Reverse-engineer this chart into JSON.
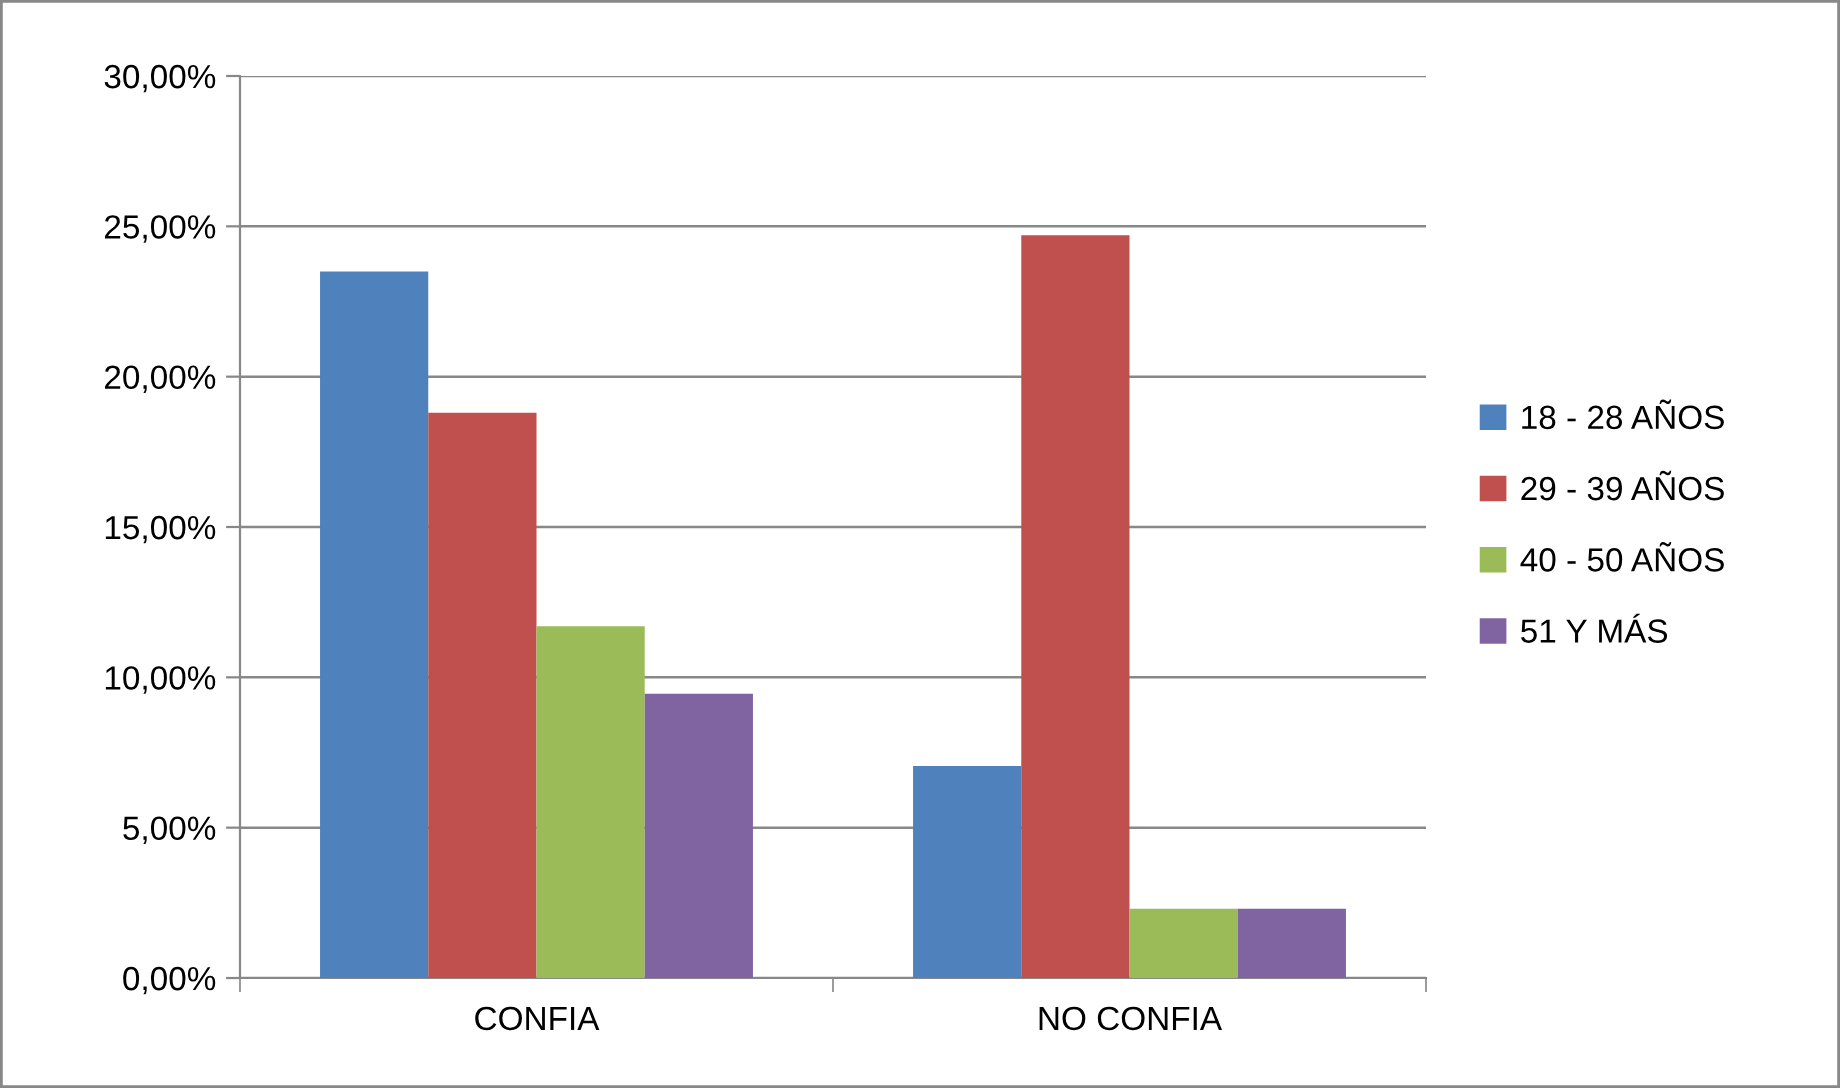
{
  "chart_data": {
    "type": "bar",
    "categories": [
      "CONFIA",
      "NO CONFIA"
    ],
    "series": [
      {
        "name": "18 - 28 AÑOS",
        "color": "#4f81bd",
        "values": [
          23.5,
          7.05
        ]
      },
      {
        "name": "29 - 39 AÑOS",
        "color": "#c0504d",
        "values": [
          18.8,
          24.7
        ]
      },
      {
        "name": "40 - 50 AÑOS",
        "color": "#9bbb59",
        "values": [
          11.7,
          2.3
        ]
      },
      {
        "name": "51 Y MÁS",
        "color": "#8064a2",
        "values": [
          9.45,
          2.3
        ]
      }
    ],
    "ylim": [
      0,
      30
    ],
    "yticks": [
      {
        "value": 0,
        "label": "0,00%"
      },
      {
        "value": 5,
        "label": "5,00%"
      },
      {
        "value": 10,
        "label": "10,00%"
      },
      {
        "value": 15,
        "label": "15,00%"
      },
      {
        "value": 20,
        "label": "20,00%"
      },
      {
        "value": 25,
        "label": "25,00%"
      },
      {
        "value": 30,
        "label": "30,00%"
      }
    ],
    "grid": "y",
    "legend": "right"
  }
}
